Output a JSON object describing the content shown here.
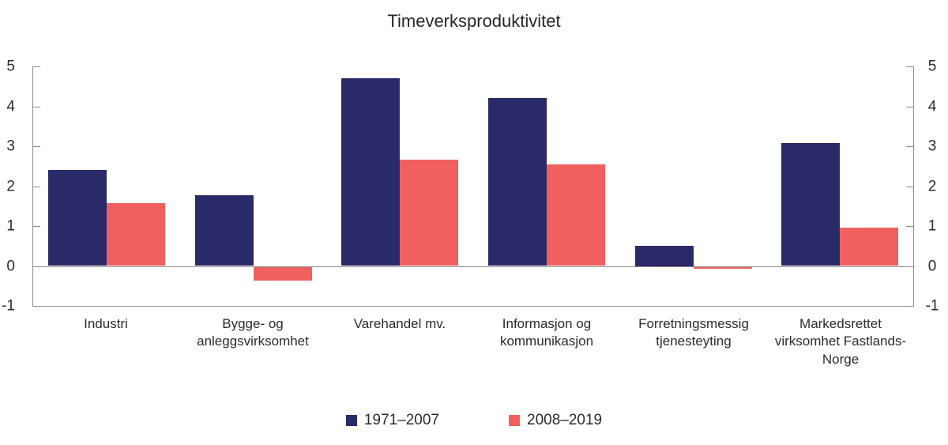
{
  "title": "Timeverksproduktivitet",
  "chart_data": {
    "type": "bar",
    "title": "Timeverksproduktivitet",
    "categories": [
      "Industri",
      "Bygge- og anleggsvirksomhet",
      "Varehandel mv.",
      "Informasjon og kommunikasjon",
      "Forretningsmessig tjenesteyting",
      "Markedsrettet virksomhet Fastlands-Norge"
    ],
    "series": [
      {
        "name": "1971–2007",
        "color": "#2a2a68",
        "values": [
          2.4,
          1.78,
          4.7,
          4.2,
          0.5,
          3.07
        ]
      },
      {
        "name": "2008–2019",
        "color": "#f0605f",
        "values": [
          1.57,
          -0.35,
          2.66,
          2.55,
          -0.05,
          0.97
        ]
      }
    ],
    "xlabel": "",
    "ylabel": "",
    "ylim": [
      -1,
      5
    ],
    "yticks": [
      5,
      4,
      3,
      2,
      1,
      0,
      -1
    ],
    "y_axis_sides": [
      "left",
      "right"
    ],
    "grid": "zero-line-only",
    "legend_position": "bottom"
  },
  "colors": {
    "axis": "#8c8c8c",
    "text": "#2b2b2b",
    "background": "#ffffff"
  }
}
